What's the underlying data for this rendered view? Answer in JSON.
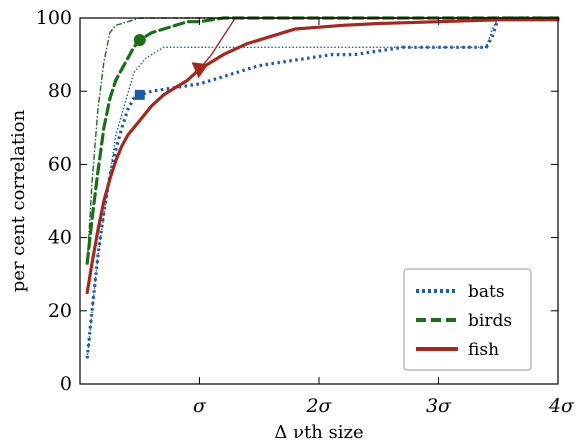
{
  "chart_data": {
    "type": "line",
    "title": "",
    "xlabel": "Δ νth size",
    "ylabel": "per cent correlation",
    "xlim": [
      0,
      4
    ],
    "ylim": [
      0,
      100
    ],
    "x_ticks": [
      {
        "value": 1,
        "label": "σ"
      },
      {
        "value": 2,
        "label": "2σ"
      },
      {
        "value": 3,
        "label": "3σ"
      },
      {
        "value": 4,
        "label": "4σ"
      }
    ],
    "y_ticks": [
      0,
      20,
      40,
      60,
      80,
      100
    ],
    "grid": false,
    "legend_position": "lower-right",
    "series": [
      {
        "name": "bats",
        "color": "#1f5aa6",
        "style": "dotted",
        "values": [
          [
            0.06,
            7
          ],
          [
            0.1,
            20
          ],
          [
            0.15,
            35
          ],
          [
            0.2,
            47
          ],
          [
            0.25,
            57
          ],
          [
            0.3,
            64
          ],
          [
            0.35,
            70
          ],
          [
            0.4,
            75
          ],
          [
            0.45,
            78
          ],
          [
            0.5,
            79
          ],
          [
            0.6,
            80
          ],
          [
            0.8,
            81
          ],
          [
            1.0,
            82
          ],
          [
            1.2,
            84
          ],
          [
            1.4,
            86
          ],
          [
            1.5,
            87
          ],
          [
            1.7,
            88
          ],
          [
            1.9,
            89
          ],
          [
            2.1,
            90
          ],
          [
            2.3,
            90
          ],
          [
            2.5,
            91
          ],
          [
            2.7,
            92
          ],
          [
            3.0,
            92
          ],
          [
            3.2,
            92
          ],
          [
            3.4,
            92
          ],
          [
            3.45,
            95
          ],
          [
            3.5,
            100
          ],
          [
            4.0,
            100
          ]
        ],
        "secondary": [
          [
            0.06,
            7
          ],
          [
            0.15,
            35
          ],
          [
            0.3,
            68
          ],
          [
            0.45,
            85
          ],
          [
            0.55,
            89
          ],
          [
            0.7,
            92
          ],
          [
            0.8,
            92
          ],
          [
            1.5,
            92
          ],
          [
            2.5,
            92
          ],
          [
            3.4,
            92
          ],
          [
            3.45,
            97
          ],
          [
            3.5,
            100
          ],
          [
            4.0,
            100
          ]
        ],
        "marker": {
          "shape": "square",
          "x": 0.5,
          "y": 79
        }
      },
      {
        "name": "birds",
        "color": "#1a6e1a",
        "style": "dashed",
        "values": [
          [
            0.06,
            33
          ],
          [
            0.1,
            45
          ],
          [
            0.15,
            58
          ],
          [
            0.2,
            70
          ],
          [
            0.25,
            78
          ],
          [
            0.3,
            83
          ],
          [
            0.35,
            86
          ],
          [
            0.4,
            89
          ],
          [
            0.45,
            92
          ],
          [
            0.5,
            94
          ],
          [
            0.6,
            96
          ],
          [
            0.7,
            97
          ],
          [
            0.8,
            98
          ],
          [
            0.9,
            99
          ],
          [
            1.0,
            99
          ],
          [
            1.2,
            100
          ],
          [
            1.5,
            100
          ],
          [
            2.0,
            100
          ],
          [
            3.0,
            100
          ],
          [
            4.0,
            100
          ]
        ],
        "secondary": [
          [
            0.06,
            33
          ],
          [
            0.1,
            55
          ],
          [
            0.15,
            75
          ],
          [
            0.2,
            88
          ],
          [
            0.25,
            96
          ],
          [
            0.3,
            98
          ],
          [
            0.4,
            99
          ],
          [
            0.5,
            100
          ],
          [
            1.0,
            100
          ],
          [
            2.0,
            100
          ],
          [
            3.0,
            100
          ],
          [
            4.0,
            100
          ]
        ],
        "marker": {
          "shape": "circle",
          "x": 0.5,
          "y": 94
        }
      },
      {
        "name": "fish",
        "color": "#a3281e",
        "style": "solid",
        "values": [
          [
            0.06,
            25
          ],
          [
            0.1,
            33
          ],
          [
            0.15,
            42
          ],
          [
            0.2,
            50
          ],
          [
            0.25,
            56
          ],
          [
            0.3,
            61
          ],
          [
            0.35,
            65
          ],
          [
            0.4,
            68
          ],
          [
            0.5,
            72
          ],
          [
            0.6,
            76
          ],
          [
            0.7,
            79
          ],
          [
            0.8,
            81
          ],
          [
            0.9,
            83
          ],
          [
            1.0,
            86
          ],
          [
            1.1,
            88
          ],
          [
            1.2,
            90
          ],
          [
            1.4,
            93
          ],
          [
            1.6,
            95
          ],
          [
            1.8,
            97
          ],
          [
            2.0,
            97.5
          ],
          [
            2.2,
            98
          ],
          [
            2.5,
            98.5
          ],
          [
            3.0,
            99
          ],
          [
            3.5,
            99.5
          ],
          [
            4.0,
            99.5
          ]
        ],
        "secondary": [
          [
            1.0,
            86
          ],
          [
            1.1,
            90
          ],
          [
            1.2,
            95
          ],
          [
            1.3,
            100
          ],
          [
            4.0,
            100
          ]
        ],
        "marker": {
          "shape": "triangle",
          "x": 1.0,
          "y": 86
        }
      }
    ]
  }
}
